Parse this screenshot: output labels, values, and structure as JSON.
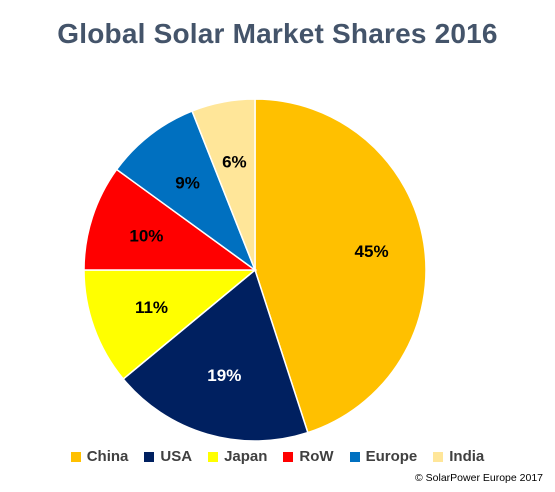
{
  "chart_data": {
    "type": "pie",
    "title": "Global Solar Market Shares 2016",
    "slices": [
      {
        "label": "China",
        "value": 45,
        "display": "45%",
        "color": "#FFC000",
        "text_color": "#000000"
      },
      {
        "label": "USA",
        "value": 19,
        "display": "19%",
        "color": "#002060",
        "text_color": "#FFFFFF"
      },
      {
        "label": "Japan",
        "value": 11,
        "display": "11%",
        "color": "#FFFF00",
        "text_color": "#000000"
      },
      {
        "label": "RoW",
        "value": 10,
        "display": "10%",
        "color": "#FF0000",
        "text_color": "#000000"
      },
      {
        "label": "Europe",
        "value": 9,
        "display": "9%",
        "color": "#0070C0",
        "text_color": "#000000"
      },
      {
        "label": "India",
        "value": 6,
        "display": "6%",
        "color": "#FFE699",
        "text_color": "#000000"
      }
    ],
    "legend_position": "bottom",
    "source": "© SolarPower Europe 2017"
  }
}
